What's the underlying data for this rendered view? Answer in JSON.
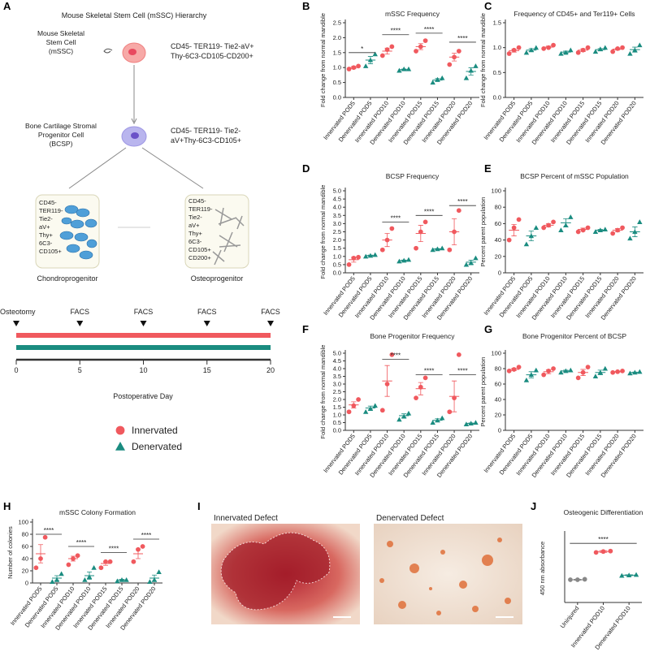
{
  "diagram": {
    "panel": "A",
    "title": "Mouse Skeletal Stem Cell (mSSC) Hierarchy",
    "mssc_label": [
      "Mouse Skeletal",
      "Stem Cell",
      "(mSSC)"
    ],
    "mssc_markers": [
      "CD45- TER119- Tie2-aV+",
      "Thy-6C3-CD105-CD200+"
    ],
    "bcsp_label": [
      "Bone Cartilage Stromal",
      "Progenitor Cell",
      "(BCSP)"
    ],
    "bcsp_markers": [
      "CD45- TER119- Tie2-",
      "aV+Thy-6C3-CD105+"
    ],
    "chondro_markers": [
      "CD45-",
      "TER119-",
      "Tie2-",
      "aV+",
      "Thy+",
      "6C3-",
      "CD105+"
    ],
    "osteo_markers": [
      "CD45-",
      "TER119-",
      "Tie2-",
      "aV+",
      "Thy+",
      "6C3-",
      "CD105+",
      "CD200+"
    ],
    "chondro_label": "Chondroprogenitor",
    "osteo_label": "Osteoprogenitor",
    "timeline": {
      "events": [
        {
          "label": "Osteotomy",
          "day": 0
        },
        {
          "label": "FACS",
          "day": 5
        },
        {
          "label": "FACS",
          "day": 10
        },
        {
          "label": "FACS",
          "day": 15
        },
        {
          "label": "FACS",
          "day": 20
        }
      ],
      "xlim": [
        0,
        20
      ],
      "xticks": [
        0,
        5,
        10,
        15,
        20
      ],
      "xlabel": "Postoperative Day"
    },
    "legend": [
      {
        "name": "Innervated",
        "color": "#f0595e",
        "marker": "circle"
      },
      {
        "name": "Denervated",
        "color": "#1a8c80",
        "marker": "triangle"
      }
    ]
  },
  "images": {
    "panel": "I",
    "items": [
      {
        "label": "Innervated Defect"
      },
      {
        "label": "Denervated Defect"
      }
    ]
  },
  "chart_data": [
    {
      "type": "dotplot",
      "panel": "B",
      "title": "mSSC Frequency",
      "ylabel": "Fold change from normal mandible",
      "categories": [
        "Innervated POD5",
        "Denervated POD5",
        "Innervated POD10",
        "Denervated POD10",
        "Innervated POD15",
        "Denervated POD15",
        "Innervated POD20",
        "Denervated POD20"
      ],
      "colors": [
        "#f0595e",
        "#1a8c80",
        "#f0595e",
        "#1a8c80",
        "#f0595e",
        "#1a8c80",
        "#f0595e",
        "#1a8c80"
      ],
      "markers": [
        "circle",
        "triangle",
        "circle",
        "triangle",
        "circle",
        "triangle",
        "circle",
        "triangle"
      ],
      "points": [
        [
          0.95,
          1.0,
          1.05
        ],
        [
          1.05,
          1.25,
          1.45
        ],
        [
          1.4,
          1.6,
          1.7
        ],
        [
          0.9,
          0.95,
          0.95
        ],
        [
          1.55,
          1.7,
          1.9
        ],
        [
          0.5,
          0.6,
          0.65
        ],
        [
          1.1,
          1.35,
          1.55
        ],
        [
          0.65,
          0.9,
          1.05
        ]
      ],
      "means": [
        1.0,
        1.25,
        1.55,
        0.93,
        1.7,
        0.58,
        1.35,
        0.87
      ],
      "sem": [
        0.04,
        0.12,
        0.1,
        0.02,
        0.1,
        0.05,
        0.13,
        0.12
      ],
      "ylim": [
        0,
        2.5
      ],
      "yticks": [
        {
          "value": 0,
          "label": "0.0"
        },
        0.5,
        {
          "value": 1,
          "label": "1.0"
        },
        1.5,
        {
          "value": 2,
          "label": "2.0"
        },
        2.5
      ],
      "annotations": [
        {
          "pair": [
            0,
            1
          ],
          "y": 1.5,
          "label": "*"
        },
        {
          "pair": [
            2,
            3
          ],
          "y": 2.1,
          "label": "****"
        },
        {
          "pair": [
            4,
            5
          ],
          "y": 2.15,
          "label": "****"
        },
        {
          "pair": [
            6,
            7
          ],
          "y": 1.85,
          "label": "****"
        }
      ]
    },
    {
      "type": "dotplot",
      "panel": "C",
      "title": "Frequency of CD45+ and Ter119+ Cells",
      "ylabel": "Fold change from normal mandible",
      "categories": [
        "Innervated POD5",
        "Denervated POD5",
        "Innervated POD10",
        "Denervated POD10",
        "Innervated POD15",
        "Denervated POD15",
        "Innervated POD20",
        "Denervated POD20"
      ],
      "colors": [
        "#f0595e",
        "#1a8c80",
        "#f0595e",
        "#1a8c80",
        "#f0595e",
        "#1a8c80",
        "#f0595e",
        "#1a8c80"
      ],
      "markers": [
        "circle",
        "triangle",
        "circle",
        "triangle",
        "circle",
        "triangle",
        "circle",
        "triangle"
      ],
      "points": [
        [
          0.88,
          0.95,
          1.0
        ],
        [
          0.9,
          0.95,
          1.0
        ],
        [
          0.98,
          1.0,
          1.05
        ],
        [
          0.88,
          0.9,
          0.95
        ],
        [
          0.9,
          0.95,
          1.0
        ],
        [
          0.92,
          0.97,
          1.0
        ],
        [
          0.92,
          0.98,
          1.0
        ],
        [
          0.88,
          0.95,
          1.05
        ]
      ],
      "means": [
        0.94,
        0.95,
        1.01,
        0.91,
        0.95,
        0.96,
        0.97,
        0.96
      ],
      "sem": [
        0.03,
        0.03,
        0.02,
        0.02,
        0.03,
        0.02,
        0.02,
        0.05
      ],
      "ylim": [
        0,
        1.5
      ],
      "yticks": [
        {
          "value": 0,
          "label": "0.0"
        },
        0.5,
        {
          "value": 1,
          "label": "1.0"
        },
        1.5
      ],
      "annotations": []
    },
    {
      "type": "dotplot",
      "panel": "D",
      "title": "BCSP Frequency",
      "ylabel": "Fold change from normal mandible",
      "categories": [
        "Innervated POD5",
        "Denervated POD5",
        "Innervated POD10",
        "Denervated POD10",
        "Innervated POD15",
        "Denervated POD15",
        "Innervated POD20",
        "Denervated POD20"
      ],
      "colors": [
        "#f0595e",
        "#1a8c80",
        "#f0595e",
        "#1a8c80",
        "#f0595e",
        "#1a8c80",
        "#f0595e",
        "#1a8c80"
      ],
      "markers": [
        "circle",
        "triangle",
        "circle",
        "triangle",
        "circle",
        "triangle",
        "circle",
        "triangle"
      ],
      "points": [
        [
          0.5,
          0.9,
          0.95
        ],
        [
          1.0,
          1.05,
          1.1
        ],
        [
          1.4,
          2.0,
          2.7
        ],
        [
          0.7,
          0.75,
          0.8
        ],
        [
          1.5,
          2.5,
          3.1
        ],
        [
          1.4,
          1.45,
          1.5
        ],
        [
          1.4,
          2.5,
          3.8
        ],
        [
          0.5,
          0.6,
          0.9
        ]
      ],
      "means": [
        0.8,
        1.05,
        2.0,
        0.75,
        2.4,
        1.45,
        2.5,
        0.65
      ],
      "sem": [
        0.15,
        0.03,
        0.4,
        0.03,
        0.5,
        0.03,
        0.8,
        0.12
      ],
      "ylim": [
        0,
        5
      ],
      "yticks": [
        {
          "value": 0,
          "label": "0.0"
        },
        0.5,
        {
          "value": 1,
          "label": "1.0"
        },
        1.5,
        {
          "value": 2,
          "label": "2.0"
        },
        2.5,
        {
          "value": 3,
          "label": "3.0"
        },
        3.5,
        {
          "value": 4,
          "label": "4.0"
        },
        4.5,
        {
          "value": 5,
          "label": "5.0"
        }
      ],
      "annotations": [
        {
          "pair": [
            2,
            3
          ],
          "y": 3.1,
          "label": "****"
        },
        {
          "pair": [
            4,
            5
          ],
          "y": 3.5,
          "label": "****"
        },
        {
          "pair": [
            6,
            7
          ],
          "y": 4.1,
          "label": "****"
        }
      ]
    },
    {
      "type": "dotplot",
      "panel": "E",
      "title": "BCSP Percent of mSSC Population",
      "ylabel": "Percent parent population",
      "categories": [
        "Innervated POD5",
        "Denervated POD5",
        "Innervated POD10",
        "Denervated POD10",
        "Innervated POD15",
        "Denervated POD15",
        "Innervated POD20",
        "Denervated POD20"
      ],
      "colors": [
        "#f0595e",
        "#1a8c80",
        "#f0595e",
        "#1a8c80",
        "#f0595e",
        "#1a8c80",
        "#f0595e",
        "#1a8c80"
      ],
      "markers": [
        "circle",
        "triangle",
        "circle",
        "triangle",
        "circle",
        "triangle",
        "circle",
        "triangle"
      ],
      "points": [
        [
          40,
          55,
          65
        ],
        [
          35,
          45,
          55
        ],
        [
          55,
          58,
          62
        ],
        [
          52,
          58,
          68
        ],
        [
          50,
          52,
          55
        ],
        [
          50,
          52,
          53
        ],
        [
          48,
          52,
          55
        ],
        [
          42,
          50,
          62
        ]
      ],
      "means": [
        52,
        45,
        58,
        61,
        53,
        52,
        52,
        50
      ],
      "sem": [
        7,
        6,
        2,
        5,
        1.5,
        1,
        2,
        6
      ],
      "ylim": [
        0,
        100
      ],
      "yticks": [
        0,
        20,
        40,
        60,
        80,
        100
      ],
      "annotations": []
    },
    {
      "type": "dotplot",
      "panel": "F",
      "title": "Bone Progenitor Frequency",
      "ylabel": "Fold change from normal mandible",
      "categories": [
        "Innervated POD5",
        "Denervated POD5",
        "Innervated POD10",
        "Denervated POD10",
        "Innervated POD15",
        "Denervated POD15",
        "Innervated POD20",
        "Denervated POD20"
      ],
      "colors": [
        "#f0595e",
        "#1a8c80",
        "#f0595e",
        "#1a8c80",
        "#f0595e",
        "#1a8c80",
        "#f0595e",
        "#1a8c80"
      ],
      "markers": [
        "circle",
        "triangle",
        "circle",
        "triangle",
        "circle",
        "triangle",
        "circle",
        "triangle"
      ],
      "points": [
        [
          1.2,
          1.6,
          2.0
        ],
        [
          1.2,
          1.4,
          1.6
        ],
        [
          1.3,
          3.0,
          4.9
        ],
        [
          0.7,
          0.9,
          1.1
        ],
        [
          2.1,
          2.8,
          3.4
        ],
        [
          0.5,
          0.65,
          0.8
        ],
        [
          1.2,
          2.1,
          4.9
        ],
        [
          0.4,
          0.45,
          0.5
        ]
      ],
      "means": [
        1.65,
        1.45,
        3.2,
        0.95,
        2.7,
        0.65,
        2.2,
        0.45
      ],
      "sem": [
        0.2,
        0.12,
        1.0,
        0.12,
        0.4,
        0.1,
        1.0,
        0.03
      ],
      "ylim": [
        0,
        5
      ],
      "yticks": [
        {
          "value": 0,
          "label": "0.0"
        },
        0.5,
        {
          "value": 1,
          "label": "1.0"
        },
        1.5,
        {
          "value": 2,
          "label": "2.0"
        },
        2.5,
        {
          "value": 3,
          "label": "3.0"
        },
        3.5,
        {
          "value": 4,
          "label": "4.0"
        },
        4.5,
        {
          "value": 5,
          "label": "5.0"
        }
      ],
      "annotations": [
        {
          "pair": [
            2,
            3
          ],
          "y": 4.6,
          "label": "****"
        },
        {
          "pair": [
            4,
            5
          ],
          "y": 3.6,
          "label": "****"
        },
        {
          "pair": [
            6,
            7
          ],
          "y": 3.6,
          "label": "****"
        }
      ]
    },
    {
      "type": "dotplot",
      "panel": "G",
      "title": "Bone Progenitor Percent of BCSP",
      "ylabel": "Percent parent population",
      "categories": [
        "Innervated POD5",
        "Denervated POD5",
        "Innervated POD10",
        "Denervated POD10",
        "Innervated POD15",
        "Denervated POD15",
        "Innervated POD20",
        "Denervated POD20"
      ],
      "colors": [
        "#f0595e",
        "#1a8c80",
        "#f0595e",
        "#1a8c80",
        "#f0595e",
        "#1a8c80",
        "#f0595e",
        "#1a8c80"
      ],
      "markers": [
        "circle",
        "triangle",
        "circle",
        "triangle",
        "circle",
        "triangle",
        "circle",
        "triangle"
      ],
      "points": [
        [
          77,
          79,
          82
        ],
        [
          65,
          72,
          78
        ],
        [
          72,
          77,
          80
        ],
        [
          75,
          77,
          78
        ],
        [
          68,
          75,
          82
        ],
        [
          70,
          75,
          80
        ],
        [
          75,
          76,
          77
        ],
        [
          74,
          75,
          76
        ]
      ],
      "means": [
        79,
        72,
        76,
        77,
        75,
        75,
        76,
        75
      ],
      "sem": [
        1.5,
        4,
        2.5,
        1,
        4,
        3,
        0.5,
        0.5
      ],
      "ylim": [
        0,
        100
      ],
      "yticks": [
        0,
        20,
        40,
        60,
        80,
        100
      ],
      "annotations": []
    },
    {
      "type": "dotplot",
      "panel": "H",
      "title": "mSSC Colony Formation",
      "ylabel": "Number of colonies",
      "categories": [
        "Innervated POD5",
        "Denervated POD5",
        "Innervated POD10",
        "Denervated POD10",
        "Innervated POD15",
        "Denervated POD15",
        "Innervated POD20",
        "Denervated POD20"
      ],
      "colors": [
        "#f0595e",
        "#1a8c80",
        "#f0595e",
        "#1a8c80",
        "#f0595e",
        "#1a8c80",
        "#f0595e",
        "#1a8c80"
      ],
      "markers": [
        "circle",
        "triangle",
        "circle",
        "triangle",
        "circle",
        "triangle",
        "circle",
        "triangle"
      ],
      "points": [
        [
          25,
          40,
          75
        ],
        [
          2,
          5,
          15
        ],
        [
          30,
          40,
          45
        ],
        [
          5,
          10,
          25
        ],
        [
          25,
          35,
          35
        ],
        [
          3,
          5,
          5
        ],
        [
          35,
          55,
          60
        ],
        [
          2,
          5,
          18
        ]
      ],
      "means": [
        48,
        8,
        40,
        12,
        32,
        5,
        48,
        8
      ],
      "sem": [
        15,
        4,
        4,
        6,
        3,
        1,
        8,
        5
      ],
      "ylim": [
        0,
        100
      ],
      "yticks": [
        0,
        20,
        40,
        60,
        80,
        100
      ],
      "annotations": [
        {
          "pair": [
            0,
            1
          ],
          "y": 80,
          "label": "****"
        },
        {
          "pair": [
            2,
            3
          ],
          "y": 60,
          "label": "****"
        },
        {
          "pair": [
            4,
            5
          ],
          "y": 50,
          "label": "****"
        },
        {
          "pair": [
            6,
            7
          ],
          "y": 72,
          "label": "****"
        }
      ]
    },
    {
      "type": "dotplot",
      "panel": "J",
      "title": "Osteogenic Differentiation",
      "ylabel": "450  nm absorbance",
      "categories": [
        "Uninjured",
        "Innervated POD10",
        "Denervated POD10"
      ],
      "colors": [
        "#888888",
        "#f0595e",
        "#1a8c80"
      ],
      "markers": [
        "circle",
        "circle",
        "triangle"
      ],
      "points": [
        [
          0.5,
          0.5,
          0.51
        ],
        [
          1.1,
          1.12,
          1.13
        ],
        [
          0.59,
          0.6,
          0.61
        ]
      ],
      "means": [
        0.5,
        1.12,
        0.6
      ],
      "sem": [
        0.01,
        0.02,
        0.01
      ],
      "ylim": [
        0,
        1.5
      ],
      "annotations": [
        {
          "pair": [
            0,
            2
          ],
          "y": 1.3,
          "label": "****"
        }
      ]
    }
  ]
}
